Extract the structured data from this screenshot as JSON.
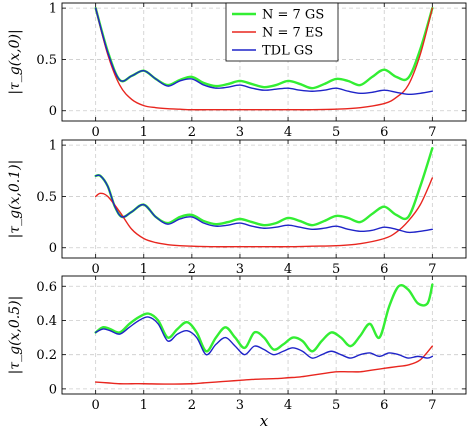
{
  "chart_data": [
    {
      "type": "line",
      "ylabel": "|τ_g(x,0)|",
      "ylim": [
        -0.1,
        1.05
      ],
      "xlim": [
        -0.7,
        7.7
      ],
      "yticks": [
        0,
        0.5,
        1
      ],
      "ytick_labels": [
        "0",
        "0.5",
        "1"
      ],
      "xticks": [
        0,
        1,
        2,
        3,
        4,
        5,
        6,
        7
      ],
      "xtick_labels": [
        "0",
        "1",
        "2",
        "3",
        "4",
        "5",
        "6",
        "7"
      ],
      "grid": true,
      "legend": {
        "position": "top-center",
        "entries": [
          {
            "label": "N = 7 GS",
            "color": "#33ee33"
          },
          {
            "label": "N = 7 ES",
            "color": "#e8261f"
          },
          {
            "label": "TDL GS",
            "color": "#1f24c8"
          }
        ]
      },
      "series": [
        {
          "name": "N = 7 GS",
          "color": "#33ee33",
          "x": [
            0,
            0.25,
            0.5,
            0.75,
            1,
            1.25,
            1.5,
            1.75,
            2,
            2.25,
            2.5,
            2.75,
            3,
            3.25,
            3.5,
            3.75,
            4,
            4.25,
            4.5,
            4.75,
            5,
            5.25,
            5.5,
            5.75,
            6,
            6.25,
            6.5,
            6.75,
            7
          ],
          "y": [
            1.0,
            0.58,
            0.3,
            0.34,
            0.39,
            0.31,
            0.25,
            0.3,
            0.33,
            0.27,
            0.24,
            0.26,
            0.29,
            0.26,
            0.23,
            0.25,
            0.29,
            0.26,
            0.22,
            0.26,
            0.31,
            0.29,
            0.25,
            0.33,
            0.4,
            0.33,
            0.32,
            0.6,
            1.0
          ]
        },
        {
          "name": "N = 7 ES",
          "color": "#e8261f",
          "x": [
            0,
            0.25,
            0.5,
            0.75,
            1,
            1.25,
            1.5,
            1.75,
            2,
            2.5,
            3,
            3.5,
            4,
            4.5,
            5,
            5.5,
            6,
            6.25,
            6.5,
            6.75,
            7
          ],
          "y": [
            1.0,
            0.55,
            0.25,
            0.11,
            0.05,
            0.03,
            0.02,
            0.015,
            0.01,
            0.01,
            0.01,
            0.01,
            0.01,
            0.01,
            0.015,
            0.03,
            0.07,
            0.13,
            0.25,
            0.55,
            1.0
          ]
        },
        {
          "name": "TDL GS",
          "color": "#1f24c8",
          "x": [
            0,
            0.25,
            0.5,
            0.75,
            1,
            1.25,
            1.5,
            1.75,
            2,
            2.25,
            2.5,
            2.75,
            3,
            3.25,
            3.5,
            3.75,
            4,
            4.25,
            4.5,
            4.75,
            5,
            5.25,
            5.5,
            5.75,
            6,
            6.25,
            6.5,
            6.75,
            7
          ],
          "y": [
            1.0,
            0.57,
            0.3,
            0.34,
            0.39,
            0.31,
            0.24,
            0.29,
            0.31,
            0.25,
            0.22,
            0.23,
            0.25,
            0.22,
            0.2,
            0.21,
            0.22,
            0.2,
            0.19,
            0.2,
            0.22,
            0.19,
            0.17,
            0.18,
            0.2,
            0.18,
            0.16,
            0.17,
            0.19
          ]
        }
      ]
    },
    {
      "type": "line",
      "ylabel": "|τ_g(x,0.1)|",
      "ylim": [
        -0.1,
        1.05
      ],
      "xlim": [
        -0.7,
        7.7
      ],
      "yticks": [
        0,
        0.5,
        1
      ],
      "ytick_labels": [
        "0",
        "0.5",
        "1"
      ],
      "xticks": [
        0,
        1,
        2,
        3,
        4,
        5,
        6,
        7
      ],
      "xtick_labels": [
        "0",
        "1",
        "2",
        "3",
        "4",
        "5",
        "6",
        "7"
      ],
      "grid": true,
      "series": [
        {
          "name": "N = 7 GS",
          "color": "#33ee33",
          "x": [
            0,
            0.1,
            0.25,
            0.4,
            0.55,
            0.75,
            1,
            1.25,
            1.5,
            1.75,
            2,
            2.25,
            2.5,
            2.75,
            3,
            3.25,
            3.5,
            3.75,
            4,
            4.25,
            4.5,
            4.75,
            5,
            5.25,
            5.5,
            5.75,
            6,
            6.25,
            6.5,
            6.75,
            7
          ],
          "y": [
            0.7,
            0.7,
            0.6,
            0.4,
            0.3,
            0.35,
            0.42,
            0.3,
            0.24,
            0.3,
            0.32,
            0.26,
            0.23,
            0.25,
            0.28,
            0.25,
            0.22,
            0.24,
            0.29,
            0.26,
            0.22,
            0.26,
            0.31,
            0.29,
            0.25,
            0.33,
            0.4,
            0.32,
            0.3,
            0.6,
            0.97
          ]
        },
        {
          "name": "N = 7 ES",
          "color": "#e8261f",
          "x": [
            0,
            0.1,
            0.25,
            0.5,
            0.75,
            1,
            1.25,
            1.5,
            1.75,
            2,
            2.5,
            3,
            3.5,
            4,
            4.5,
            5,
            5.5,
            6,
            6.25,
            6.5,
            6.75,
            7
          ],
          "y": [
            0.5,
            0.53,
            0.5,
            0.35,
            0.18,
            0.09,
            0.05,
            0.03,
            0.02,
            0.015,
            0.01,
            0.01,
            0.01,
            0.01,
            0.015,
            0.02,
            0.04,
            0.09,
            0.15,
            0.26,
            0.42,
            0.68
          ]
        },
        {
          "name": "TDL GS",
          "color": "#1f24c8",
          "x": [
            0,
            0.1,
            0.25,
            0.4,
            0.55,
            0.75,
            1,
            1.25,
            1.5,
            1.75,
            2,
            2.25,
            2.5,
            2.75,
            3,
            3.25,
            3.5,
            3.75,
            4,
            4.25,
            4.5,
            4.75,
            5,
            5.25,
            5.5,
            5.75,
            6,
            6.25,
            6.5,
            6.75,
            7
          ],
          "y": [
            0.7,
            0.7,
            0.6,
            0.4,
            0.3,
            0.35,
            0.42,
            0.3,
            0.23,
            0.28,
            0.3,
            0.24,
            0.21,
            0.22,
            0.24,
            0.21,
            0.19,
            0.2,
            0.22,
            0.2,
            0.18,
            0.19,
            0.21,
            0.18,
            0.16,
            0.17,
            0.2,
            0.18,
            0.15,
            0.16,
            0.18
          ]
        }
      ]
    },
    {
      "type": "line",
      "ylabel": "|τ_g(x,0.5)|",
      "ylim": [
        -0.03,
        0.66
      ],
      "xlim": [
        -0.7,
        7.7
      ],
      "yticks": [
        0,
        0.2,
        0.4,
        0.6
      ],
      "ytick_labels": [
        "0",
        "0.2",
        "0.4",
        "0.6"
      ],
      "xticks": [
        0,
        1,
        2,
        3,
        4,
        5,
        6,
        7
      ],
      "xtick_labels": [
        "0",
        "1",
        "2",
        "3",
        "4",
        "5",
        "6",
        "7"
      ],
      "xlabel": "x",
      "grid": true,
      "series": [
        {
          "name": "N = 7 GS",
          "color": "#33ee33",
          "x": [
            0,
            0.15,
            0.3,
            0.5,
            0.7,
            0.9,
            1.1,
            1.3,
            1.5,
            1.7,
            1.9,
            2.1,
            2.3,
            2.5,
            2.7,
            2.9,
            3.1,
            3.3,
            3.5,
            3.7,
            3.9,
            4.1,
            4.3,
            4.5,
            4.7,
            4.9,
            5.1,
            5.3,
            5.5,
            5.7,
            5.9,
            6.1,
            6.3,
            6.5,
            6.7,
            6.9,
            7
          ],
          "y": [
            0.33,
            0.36,
            0.35,
            0.33,
            0.38,
            0.42,
            0.44,
            0.4,
            0.3,
            0.35,
            0.39,
            0.33,
            0.22,
            0.3,
            0.36,
            0.3,
            0.24,
            0.33,
            0.3,
            0.23,
            0.26,
            0.3,
            0.28,
            0.22,
            0.28,
            0.33,
            0.3,
            0.25,
            0.31,
            0.38,
            0.3,
            0.48,
            0.6,
            0.58,
            0.5,
            0.5,
            0.61
          ]
        },
        {
          "name": "N = 7 ES",
          "color": "#e8261f",
          "x": [
            0,
            0.25,
            0.5,
            0.75,
            1,
            1.5,
            2,
            2.25,
            2.5,
            2.75,
            3,
            3.25,
            3.5,
            3.75,
            4,
            4.25,
            4.5,
            4.75,
            5,
            5.25,
            5.5,
            5.75,
            6,
            6.25,
            6.5,
            6.75,
            7
          ],
          "y": [
            0.04,
            0.035,
            0.03,
            0.03,
            0.03,
            0.028,
            0.03,
            0.035,
            0.04,
            0.045,
            0.05,
            0.055,
            0.058,
            0.06,
            0.065,
            0.07,
            0.08,
            0.09,
            0.1,
            0.1,
            0.1,
            0.11,
            0.12,
            0.13,
            0.14,
            0.17,
            0.25
          ]
        },
        {
          "name": "TDL GS",
          "color": "#1f24c8",
          "x": [
            0,
            0.15,
            0.3,
            0.5,
            0.7,
            0.9,
            1.1,
            1.3,
            1.5,
            1.7,
            1.9,
            2.1,
            2.3,
            2.5,
            2.7,
            2.9,
            3.1,
            3.3,
            3.5,
            3.7,
            3.9,
            4.1,
            4.3,
            4.5,
            4.7,
            4.9,
            5.1,
            5.3,
            5.5,
            5.7,
            5.9,
            6.1,
            6.3,
            6.5,
            6.7,
            6.9,
            7
          ],
          "y": [
            0.33,
            0.35,
            0.34,
            0.32,
            0.36,
            0.4,
            0.42,
            0.38,
            0.28,
            0.32,
            0.34,
            0.3,
            0.2,
            0.26,
            0.3,
            0.25,
            0.2,
            0.25,
            0.23,
            0.2,
            0.22,
            0.24,
            0.22,
            0.18,
            0.2,
            0.22,
            0.2,
            0.18,
            0.2,
            0.21,
            0.19,
            0.21,
            0.2,
            0.18,
            0.19,
            0.18,
            0.19
          ]
        }
      ]
    }
  ]
}
